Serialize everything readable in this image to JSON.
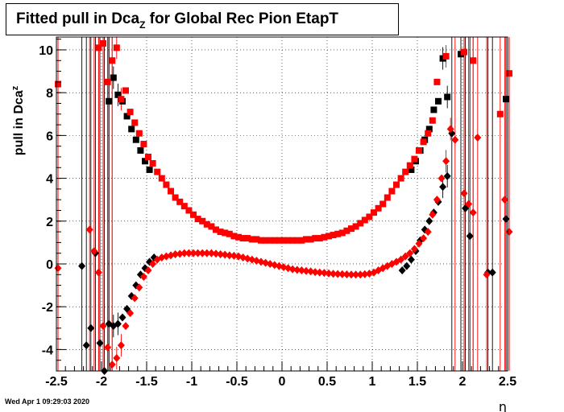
{
  "title": {
    "main": "Fitted pull in Dca",
    "sub": "Z",
    "rest": " for Global Rec Pion EtapT"
  },
  "timestamp": "Wed Apr  1 09:29:03 2020",
  "chart_data": {
    "type": "scatter",
    "title": "Fitted pull in Dca_Z for Global Rec Pion EtapT",
    "xlabel": "η",
    "ylabel": "pull in Dca_Z",
    "xlim": [
      -2.5,
      2.5
    ],
    "ylim": [
      -5,
      10.6
    ],
    "grid": true,
    "x_ticks": [
      "-2.5",
      "-2",
      "-1.5",
      "-1",
      "-0.5",
      "0",
      "0.5",
      "1",
      "1.5",
      "2",
      "2.5"
    ],
    "y_ticks": [
      "-4",
      "-2",
      "0",
      "2",
      "4",
      "6",
      "8",
      "10"
    ],
    "series": [
      {
        "marker": "square",
        "color": "#000000",
        "points": [
          [
            -1.9,
            7.6
          ],
          [
            -1.85,
            8.7
          ],
          [
            -1.8,
            7.9
          ],
          [
            -1.75,
            7.6
          ],
          [
            -1.7,
            6.9
          ],
          [
            -1.65,
            6.3
          ],
          [
            -1.6,
            5.8
          ],
          [
            -1.55,
            5.3
          ],
          [
            -1.5,
            4.8
          ],
          [
            -1.45,
            4.4
          ],
          [
            1.45,
            4.4
          ],
          [
            1.5,
            4.8
          ],
          [
            1.55,
            5.3
          ],
          [
            1.6,
            5.8
          ],
          [
            1.65,
            6.3
          ],
          [
            1.7,
            7.2
          ],
          [
            1.75,
            7.6
          ],
          [
            1.8,
            9.6
          ],
          [
            1.85,
            7.8
          ],
          [
            2.0,
            9.8
          ],
          [
            2.5,
            7.7
          ]
        ]
      },
      {
        "marker": "square",
        "color": "#ff0000",
        "points": [
          [
            -2.5,
            8.4
          ],
          [
            -2.05,
            10.1
          ],
          [
            -2.0,
            10.3
          ],
          [
            -1.95,
            8.5
          ],
          [
            -1.9,
            9.5
          ],
          [
            -1.85,
            10.1
          ],
          [
            -1.8,
            7.7
          ],
          [
            -1.75,
            8.1
          ],
          [
            -1.7,
            7.1
          ],
          [
            -1.65,
            6.6
          ],
          [
            -1.6,
            6.1
          ],
          [
            -1.55,
            5.6
          ],
          [
            -1.5,
            5.0
          ],
          [
            -1.45,
            4.7
          ],
          [
            -1.4,
            4.3
          ],
          [
            -1.35,
            4.0
          ],
          [
            -1.3,
            3.7
          ],
          [
            -1.25,
            3.4
          ],
          [
            -1.2,
            3.1
          ],
          [
            -1.15,
            2.9
          ],
          [
            -1.1,
            2.7
          ],
          [
            -1.05,
            2.5
          ],
          [
            -1.0,
            2.3
          ],
          [
            -0.95,
            2.1
          ],
          [
            -0.9,
            2.0
          ],
          [
            -0.85,
            1.85
          ],
          [
            -0.8,
            1.75
          ],
          [
            -0.75,
            1.6
          ],
          [
            -0.7,
            1.5
          ],
          [
            -0.65,
            1.45
          ],
          [
            -0.6,
            1.4
          ],
          [
            -0.55,
            1.3
          ],
          [
            -0.5,
            1.25
          ],
          [
            -0.45,
            1.2
          ],
          [
            -0.4,
            1.2
          ],
          [
            -0.35,
            1.15
          ],
          [
            -0.3,
            1.15
          ],
          [
            -0.25,
            1.1
          ],
          [
            -0.2,
            1.1
          ],
          [
            -0.15,
            1.1
          ],
          [
            -0.1,
            1.1
          ],
          [
            -0.05,
            1.1
          ],
          [
            0.0,
            1.1
          ],
          [
            0.05,
            1.1
          ],
          [
            0.1,
            1.1
          ],
          [
            0.15,
            1.1
          ],
          [
            0.2,
            1.1
          ],
          [
            0.25,
            1.15
          ],
          [
            0.3,
            1.15
          ],
          [
            0.35,
            1.2
          ],
          [
            0.4,
            1.2
          ],
          [
            0.45,
            1.25
          ],
          [
            0.5,
            1.3
          ],
          [
            0.55,
            1.35
          ],
          [
            0.6,
            1.4
          ],
          [
            0.65,
            1.45
          ],
          [
            0.7,
            1.55
          ],
          [
            0.75,
            1.65
          ],
          [
            0.8,
            1.75
          ],
          [
            0.85,
            1.9
          ],
          [
            0.9,
            2.05
          ],
          [
            0.95,
            2.2
          ],
          [
            1.0,
            2.4
          ],
          [
            1.05,
            2.6
          ],
          [
            1.1,
            2.8
          ],
          [
            1.15,
            3.1
          ],
          [
            1.2,
            3.4
          ],
          [
            1.25,
            3.7
          ],
          [
            1.3,
            4.0
          ],
          [
            1.35,
            4.3
          ],
          [
            1.4,
            4.6
          ],
          [
            1.45,
            4.9
          ],
          [
            1.5,
            5.3
          ],
          [
            1.55,
            5.7
          ],
          [
            1.6,
            6.1
          ],
          [
            1.65,
            6.7
          ],
          [
            1.7,
            8.5
          ],
          [
            1.8,
            9.7
          ],
          [
            2.0,
            9.9
          ],
          [
            2.1,
            9.5
          ],
          [
            2.4,
            7.0
          ],
          [
            2.5,
            8.9
          ]
        ]
      },
      {
        "marker": "diamond",
        "color": "#000000",
        "points": [
          [
            -2.2,
            -0.1
          ],
          [
            -2.15,
            -3.8
          ],
          [
            -2.1,
            -3.0
          ],
          [
            -2.05,
            0.5
          ],
          [
            -2.0,
            -3.7
          ],
          [
            -1.95,
            -5.0
          ],
          [
            -1.9,
            -2.8
          ],
          [
            -1.85,
            -2.9
          ],
          [
            -1.8,
            -2.8
          ],
          [
            -1.75,
            -2.5
          ],
          [
            -1.7,
            -2.1
          ],
          [
            -1.65,
            -1.5
          ],
          [
            -1.6,
            -1.0
          ],
          [
            -1.55,
            -0.5
          ],
          [
            -1.5,
            -0.2
          ],
          [
            -1.45,
            0.1
          ],
          [
            -1.4,
            0.3
          ],
          [
            1.35,
            -0.3
          ],
          [
            1.4,
            -0.1
          ],
          [
            1.45,
            0.2
          ],
          [
            1.5,
            0.6
          ],
          [
            1.55,
            1.1
          ],
          [
            1.6,
            1.6
          ],
          [
            1.65,
            2.0
          ],
          [
            1.7,
            2.4
          ],
          [
            1.75,
            2.9
          ],
          [
            1.8,
            3.6
          ],
          [
            1.85,
            4.1
          ],
          [
            1.9,
            6.1
          ],
          [
            2.05,
            2.6
          ],
          [
            2.1,
            1.3
          ],
          [
            2.3,
            -0.4
          ],
          [
            2.35,
            -0.4
          ],
          [
            2.5,
            2.1
          ]
        ]
      },
      {
        "marker": "diamond",
        "color": "#ff0000",
        "points": [
          [
            -2.5,
            -0.2
          ],
          [
            -2.15,
            1.6
          ],
          [
            -2.1,
            0.6
          ],
          [
            -2.05,
            -0.4
          ],
          [
            -2.0,
            -2.9
          ],
          [
            -1.95,
            -3.9
          ],
          [
            -1.9,
            -4.7
          ],
          [
            -1.85,
            -4.4
          ],
          [
            -1.8,
            -3.8
          ],
          [
            -1.75,
            -2.9
          ],
          [
            -1.7,
            -2.3
          ],
          [
            -1.65,
            -1.6
          ],
          [
            -1.6,
            -1.1
          ],
          [
            -1.55,
            -0.6
          ],
          [
            -1.5,
            -0.3
          ],
          [
            -1.45,
            0.0
          ],
          [
            -1.4,
            0.2
          ],
          [
            -1.35,
            0.3
          ],
          [
            -1.3,
            0.35
          ],
          [
            -1.25,
            0.4
          ],
          [
            -1.2,
            0.45
          ],
          [
            -1.15,
            0.47
          ],
          [
            -1.1,
            0.5
          ],
          [
            -1.05,
            0.5
          ],
          [
            -1.0,
            0.5
          ],
          [
            -0.95,
            0.5
          ],
          [
            -0.9,
            0.5
          ],
          [
            -0.85,
            0.5
          ],
          [
            -0.8,
            0.5
          ],
          [
            -0.75,
            0.48
          ],
          [
            -0.7,
            0.45
          ],
          [
            -0.65,
            0.43
          ],
          [
            -0.6,
            0.4
          ],
          [
            -0.55,
            0.38
          ],
          [
            -0.5,
            0.35
          ],
          [
            -0.45,
            0.3
          ],
          [
            -0.4,
            0.25
          ],
          [
            -0.35,
            0.2
          ],
          [
            -0.3,
            0.15
          ],
          [
            -0.25,
            0.1
          ],
          [
            -0.2,
            0.05
          ],
          [
            -0.15,
            0.0
          ],
          [
            -0.1,
            -0.05
          ],
          [
            -0.05,
            -0.1
          ],
          [
            0.0,
            -0.15
          ],
          [
            0.05,
            -0.2
          ],
          [
            0.1,
            -0.25
          ],
          [
            0.15,
            -0.28
          ],
          [
            0.2,
            -0.3
          ],
          [
            0.25,
            -0.33
          ],
          [
            0.3,
            -0.35
          ],
          [
            0.35,
            -0.38
          ],
          [
            0.4,
            -0.4
          ],
          [
            0.45,
            -0.42
          ],
          [
            0.5,
            -0.44
          ],
          [
            0.55,
            -0.46
          ],
          [
            0.6,
            -0.47
          ],
          [
            0.65,
            -0.48
          ],
          [
            0.7,
            -0.49
          ],
          [
            0.75,
            -0.5
          ],
          [
            0.8,
            -0.5
          ],
          [
            0.85,
            -0.5
          ],
          [
            0.9,
            -0.48
          ],
          [
            0.95,
            -0.45
          ],
          [
            1.0,
            -0.4
          ],
          [
            1.05,
            -0.3
          ],
          [
            1.1,
            -0.2
          ],
          [
            1.15,
            -0.1
          ],
          [
            1.2,
            0.0
          ],
          [
            1.25,
            0.1
          ],
          [
            1.3,
            0.2
          ],
          [
            1.35,
            0.35
          ],
          [
            1.4,
            0.5
          ],
          [
            1.45,
            0.7
          ],
          [
            1.5,
            0.95
          ],
          [
            1.55,
            1.2
          ],
          [
            1.6,
            1.5
          ],
          [
            1.65,
            2.3
          ],
          [
            1.7,
            3.0
          ],
          [
            1.75,
            4.0
          ],
          [
            1.8,
            4.8
          ],
          [
            1.85,
            6.3
          ],
          [
            1.9,
            5.8
          ],
          [
            2.0,
            3.3
          ],
          [
            2.05,
            2.8
          ],
          [
            2.1,
            2.4
          ],
          [
            2.15,
            5.9
          ],
          [
            2.25,
            -0.5
          ],
          [
            2.45,
            3.0
          ],
          [
            2.5,
            1.5
          ]
        ]
      }
    ]
  }
}
